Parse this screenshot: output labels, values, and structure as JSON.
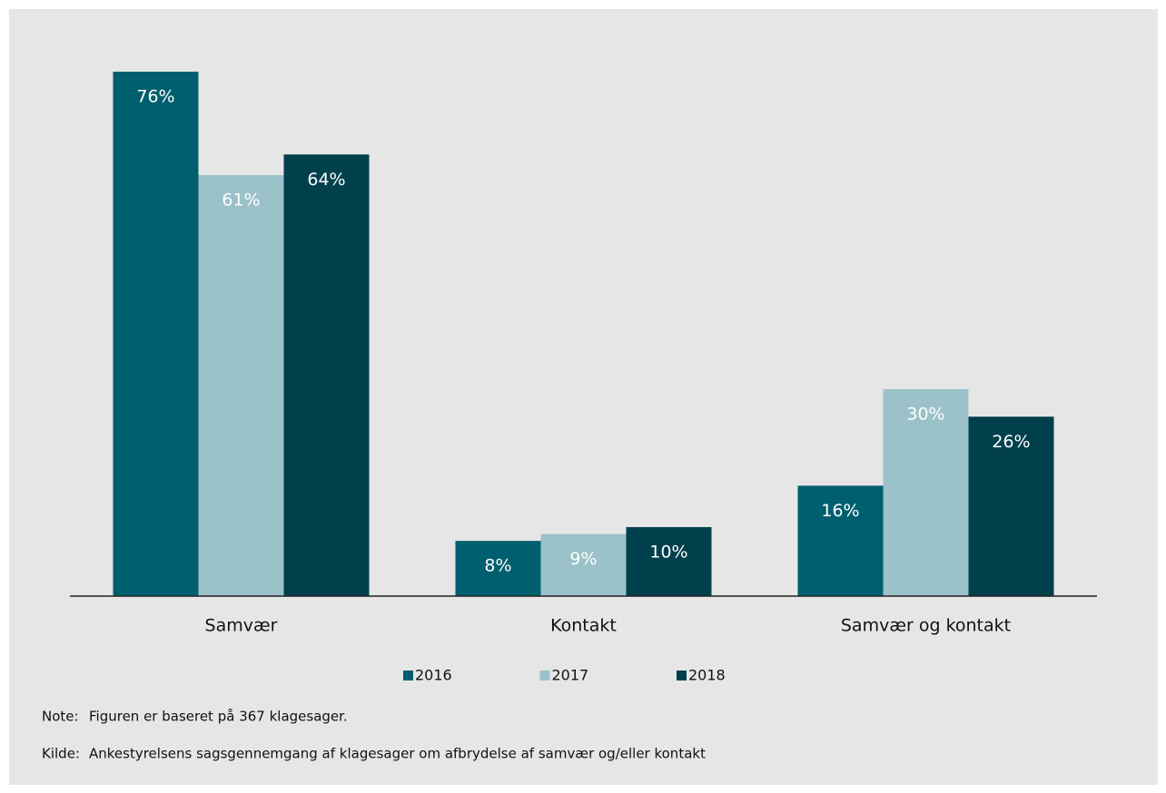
{
  "chart_data": {
    "type": "bar",
    "categories": [
      "Samvær",
      "Kontakt",
      "Samvær og kontakt"
    ],
    "series": [
      {
        "name": "2016",
        "color": "#005f6e",
        "values": [
          76,
          8,
          16
        ],
        "value_labels": [
          "76%",
          "8%",
          "16%"
        ]
      },
      {
        "name": "2017",
        "color": "#9bc1c9",
        "values": [
          61,
          9,
          30
        ],
        "value_labels": [
          "61%",
          "9%",
          "30%"
        ]
      },
      {
        "name": "2018",
        "color": "#00404d",
        "values": [
          64,
          10,
          26
        ],
        "value_labels": [
          "64%",
          "10%",
          "26%"
        ]
      }
    ],
    "legend": "bottom",
    "notes": [
      {
        "label": "Note:",
        "text": "Figuren er baseret på 367 klagesager."
      },
      {
        "label": "Kilde:",
        "text": "Ankestyrelsens sagsgennemgang af klagesager om afbrydelse af samvær og/eller kontakt"
      }
    ]
  }
}
